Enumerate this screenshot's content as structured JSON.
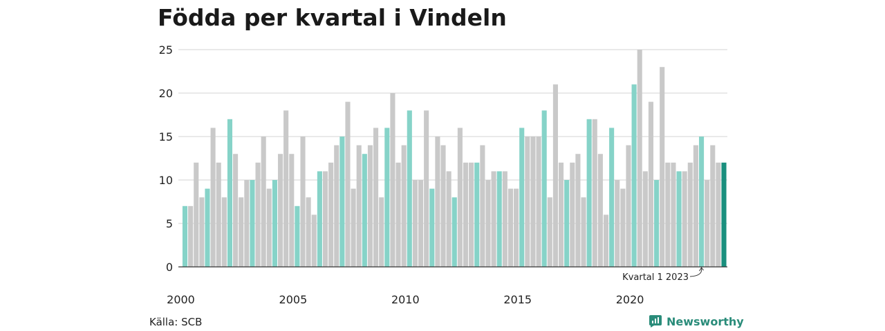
{
  "title": "Födda per kvartal i Vindeln",
  "source": "Källa: SCB",
  "brand": {
    "name": "Newsworthy",
    "icon": "bar-chart-logo-icon"
  },
  "colors": {
    "q1": "#86d3c8",
    "other": "#c9c9c9",
    "latest": "#1a8f7e",
    "grid": "#dcdcdc",
    "axis": "#333333"
  },
  "chart_data": {
    "type": "bar",
    "title": "Födda per kvartal i Vindeln",
    "xlabel": "",
    "ylabel": "",
    "ylim": [
      0,
      25
    ],
    "yticks": [
      0,
      5,
      10,
      15,
      20,
      25
    ],
    "xtick_labels": [
      "2000",
      "2005",
      "2010",
      "2015",
      "2020"
    ],
    "grid": true,
    "start_year": 2000,
    "annotation": {
      "text": "Kvartal 1 2023",
      "target_index": 92
    },
    "values": [
      7,
      7,
      12,
      8,
      9,
      16,
      12,
      8,
      17,
      13,
      8,
      10,
      10,
      12,
      15,
      9,
      10,
      13,
      18,
      13,
      7,
      15,
      8,
      6,
      11,
      11,
      12,
      14,
      15,
      19,
      9,
      14,
      13,
      14,
      16,
      8,
      16,
      20,
      12,
      14,
      18,
      10,
      10,
      18,
      9,
      15,
      14,
      11,
      8,
      16,
      12,
      12,
      12,
      14,
      10,
      11,
      11,
      11,
      9,
      9,
      16,
      15,
      15,
      15,
      18,
      8,
      21,
      12,
      10,
      12,
      13,
      8,
      17,
      17,
      13,
      6,
      16,
      10,
      9,
      14,
      21,
      25,
      11,
      19,
      10,
      23,
      12,
      12,
      11,
      11,
      12,
      14,
      15,
      10,
      14,
      12,
      12
    ]
  }
}
